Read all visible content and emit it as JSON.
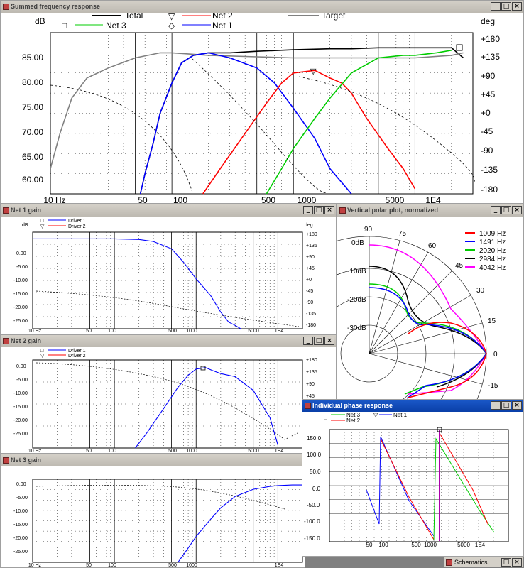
{
  "windows": {
    "summed": {
      "title": "Summed frequency response",
      "y_unit_left": "dB",
      "y_unit_right": "deg",
      "legend": [
        {
          "label": "Total",
          "color": "#000000",
          "marker": ""
        },
        {
          "label": "Net 2",
          "color": "#ff0000",
          "marker": "▽"
        },
        {
          "label": "Target",
          "color": "#808080",
          "marker": ""
        },
        {
          "label": "Net 3",
          "color": "#00cc00",
          "marker": "□"
        },
        {
          "label": "Net 1",
          "color": "#0000ff",
          "marker": "◇"
        }
      ],
      "y_ticks_left": [
        "85.00",
        "80.00",
        "75.00",
        "70.00",
        "65.00",
        "60.00"
      ],
      "y_ticks_right": [
        "+180",
        "+135",
        "+90",
        "+45",
        "+0",
        "-45",
        "-90",
        "-135",
        "-180"
      ],
      "x_ticks": [
        "10 Hz",
        "50",
        "100",
        "500",
        "1000",
        "5000",
        "1E4"
      ]
    },
    "net1": {
      "title": "Net 1 gain",
      "y_unit_left": "dB",
      "y_unit_right": "deg",
      "legend": [
        {
          "label": "Driver 1",
          "color": "#0000ff",
          "marker": "□"
        },
        {
          "label": "Driver 2",
          "color": "#ff0000",
          "marker": "▽"
        }
      ],
      "y_ticks_left": [
        "0.00",
        "-5.00",
        "-10.00",
        "-15.00",
        "-20.00",
        "-25.00"
      ],
      "y_ticks_right": [
        "+180",
        "+135",
        "+90",
        "+45",
        "+0",
        "-45",
        "-90",
        "-135",
        "-180"
      ],
      "x_ticks": [
        "10 Hz",
        "50",
        "100",
        "500",
        "1000",
        "5000",
        "1E4"
      ]
    },
    "net2": {
      "title": "Net 2 gain",
      "legend": [
        {
          "label": "Driver 1",
          "color": "#0000ff",
          "marker": "□"
        },
        {
          "label": "Driver 2",
          "color": "#ff0000",
          "marker": "▽"
        }
      ],
      "y_ticks_left": [
        "0.00",
        "-5.00",
        "-10.00",
        "-15.00",
        "-20.00",
        "-25.00"
      ],
      "y_ticks_right": [
        "+180",
        "+135",
        "+90",
        "+45"
      ],
      "x_ticks": [
        "10 Hz",
        "50",
        "100",
        "500",
        "1000",
        "5000",
        "1E4"
      ]
    },
    "net3": {
      "title": "Net 3 gain",
      "y_ticks_left": [
        "0.00",
        "-5.00",
        "-10.00",
        "-15.00",
        "-20.00",
        "-25.00"
      ],
      "x_ticks": [
        "10 Hz",
        "50",
        "100",
        "500",
        "1000",
        "1E4"
      ]
    },
    "polar": {
      "title": "Vertical polar plot, normalized",
      "radial_labels": [
        "0dB",
        "-10dB",
        "-20dB",
        "-30dB"
      ],
      "angle_labels": [
        "90",
        "75",
        "60",
        "45",
        "30",
        "15",
        "0",
        "-15"
      ],
      "legend": [
        {
          "label": "1009 Hz",
          "color": "#ff0000"
        },
        {
          "label": "1491 Hz",
          "color": "#0000ff"
        },
        {
          "label": "2020 Hz",
          "color": "#00cc00"
        },
        {
          "label": "2984 Hz",
          "color": "#000000"
        },
        {
          "label": "4042 Hz",
          "color": "#ff00ff"
        }
      ]
    },
    "phase": {
      "title": "Individual phase response",
      "legend": [
        {
          "label": "Net 3",
          "color": "#00cc00",
          "marker": ""
        },
        {
          "label": "Net 1",
          "color": "#0000ff",
          "marker": "▽"
        },
        {
          "label": "Net 2",
          "color": "#ff0000",
          "marker": "□"
        }
      ],
      "y_ticks_left": [
        "150.0",
        "100.0",
        "50.0",
        "0.0",
        "-50.0",
        "-100.0",
        "-150.0"
      ],
      "x_ticks": [
        "50",
        "100",
        "500",
        "1000",
        "5000",
        "1E4"
      ]
    },
    "taskbar": {
      "schematics_label": "Schematics"
    }
  },
  "controls": {
    "minimize": "_",
    "maximize": "□",
    "close": "×"
  },
  "chart_data": [
    {
      "chart": "summed",
      "type": "line",
      "xscale": "log",
      "xlim": [
        10,
        30000
      ],
      "ylim": [
        58,
        90
      ],
      "series": [
        {
          "name": "Total",
          "color": "#000000",
          "x": [
            55,
            60,
            70,
            80,
            100,
            120,
            150,
            200,
            300,
            500,
            1000,
            2000,
            3000,
            5000,
            10000,
            15000,
            20000,
            25000
          ],
          "y": [
            58,
            62,
            68,
            74,
            80,
            84,
            85.5,
            86,
            86,
            86.3,
            86.6,
            86.8,
            86.8,
            87,
            87,
            87,
            87,
            85
          ]
        },
        {
          "name": "Target",
          "color": "#808080",
          "x": [
            10,
            12,
            15,
            20,
            30,
            50,
            80,
            100,
            200,
            500,
            1000,
            5000,
            10000,
            20000,
            25000
          ],
          "y": [
            63,
            70,
            77,
            81,
            83,
            85,
            86,
            86,
            85.5,
            85.2,
            85,
            85,
            85,
            85.5,
            86
          ]
        },
        {
          "name": "Net 1",
          "color": "#0000ff",
          "x": [
            55,
            60,
            70,
            80,
            100,
            120,
            150,
            200,
            300,
            500,
            700,
            1000,
            1500,
            2000,
            3000
          ],
          "y": [
            58,
            62,
            68,
            74,
            80,
            84,
            85.5,
            86,
            85,
            83,
            80,
            75,
            69,
            63,
            58
          ]
        },
        {
          "name": "Net 2",
          "color": "#ff0000",
          "x": [
            180,
            250,
            400,
            600,
            800,
            1000,
            1500,
            2000,
            2500,
            3000,
            4000,
            6000,
            8000,
            10000
          ],
          "y": [
            58,
            63,
            70,
            76,
            80,
            82,
            82.5,
            81,
            80,
            78,
            73,
            67,
            63,
            59
          ]
        },
        {
          "name": "Net 3",
          "color": "#00cc00",
          "x": [
            600,
            800,
            1000,
            1500,
            2000,
            3000,
            5000,
            8000,
            10000,
            15000,
            20000
          ],
          "y": [
            58,
            63,
            67,
            73,
            77,
            82,
            85,
            85.5,
            85.5,
            86,
            86.5
          ]
        }
      ]
    },
    {
      "chart": "net1",
      "type": "line",
      "xscale": "log",
      "xlim": [
        10,
        20000
      ],
      "ylim": [
        -27,
        2
      ],
      "series": [
        {
          "name": "Driver 1",
          "color": "#0000ff",
          "x": [
            10,
            50,
            100,
            200,
            300,
            500,
            700,
            1000,
            1500,
            2000,
            2500,
            3000,
            3500
          ],
          "y": [
            0,
            0,
            0,
            -0.2,
            -0.8,
            -3,
            -7,
            -12,
            -17,
            -22,
            -25,
            -26,
            -27
          ]
        }
      ]
    },
    {
      "chart": "net2",
      "type": "line",
      "xscale": "log",
      "xlim": [
        10,
        20000
      ],
      "ylim": [
        -27,
        2
      ],
      "series": [
        {
          "name": "Driver 1",
          "color": "#0000ff",
          "x": [
            180,
            250,
            400,
            600,
            800,
            1000,
            1300,
            1600,
            2000,
            3000,
            5000,
            8000,
            10000
          ],
          "y": [
            -27,
            -22,
            -14,
            -7,
            -3,
            -1,
            -0.5,
            -1.5,
            -2.5,
            -3.5,
            -8,
            -17,
            -26
          ]
        }
      ]
    },
    {
      "chart": "net3",
      "type": "line",
      "xscale": "log",
      "xlim": [
        10,
        20000
      ],
      "ylim": [
        -27,
        2
      ],
      "series": [
        {
          "name": "Net 3",
          "color": "#0000ff",
          "x": [
            600,
            800,
            1000,
            1500,
            2000,
            3000,
            5000,
            8000,
            10000,
            15000,
            20000
          ],
          "y": [
            -27,
            -22,
            -18,
            -12,
            -8,
            -4,
            -1.5,
            -0.5,
            -0.2,
            0,
            0
          ]
        }
      ]
    }
  ]
}
